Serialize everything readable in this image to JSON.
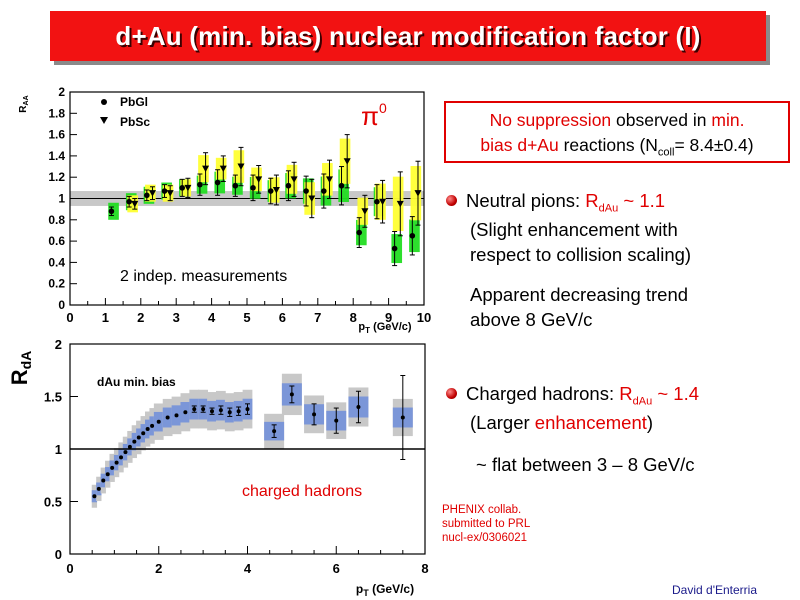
{
  "title": "d+Au (min. bias) nuclear modification factor (I)",
  "note": {
    "line1_red": "No suppression",
    "line1_black": " observed in ",
    "line1_red2": "min.",
    "line2_red": "bias d+Au",
    "line2_black": " reactions (N",
    "line2_sub": "coll",
    "line2_tail": "= 8.4±0.4)"
  },
  "bullets": {
    "b1_label": "Neutral pions: ",
    "b1_r": "R",
    "b1_sub": "dAu",
    "b1_val": " ~ 1.1",
    "b1_sub1": "(Slight enhancement with",
    "b1_sub2": " respect to collision scaling)",
    "b1_sub3": "Apparent decreasing trend",
    "b1_sub4": "above 8 GeV/c",
    "b2_label": "Charged hadrons: ",
    "b2_r": "R",
    "b2_sub": "dAu",
    "b2_val": " ~ 1.4",
    "b2_sub1a": "(Larger ",
    "b2_sub1b": "enhancement",
    "b2_sub1c": ")",
    "b2_sub2": "~ flat between 3 – 8 GeV/c"
  },
  "phenix": [
    "PHENIX collab.",
    "submitted to PRL",
    "nucl-ex/0306021"
  ],
  "author": "David d'Enterria",
  "colors": {
    "banner": "#f21212",
    "accent": "#e00000",
    "green": "#22dd22",
    "yellow": "#ffff33",
    "blue": "#7b96d8",
    "gray": "#c8c8c8"
  },
  "chart_data": [
    {
      "type": "scatter",
      "ylabel": "R_AA",
      "xlabel": "p_T (GeV/c)",
      "xlim": [
        0,
        10
      ],
      "ylim": [
        0,
        2
      ],
      "xticks": [
        "0",
        "1",
        "2",
        "3",
        "4",
        "5",
        "6",
        "7",
        "8",
        "9",
        "10"
      ],
      "yticks": [
        "0",
        "0.2",
        "0.4",
        "0.6",
        "0.8",
        "1",
        "1.2",
        "1.4",
        "1.6",
        "1.8",
        "2"
      ],
      "annotation_symbol": "π",
      "annotation_sup": "0",
      "text_annotation": "2 indep. measurements",
      "legend": [
        "PbGl",
        "PbSc"
      ],
      "legend_position": "top-left",
      "reference_band": {
        "center": 1.0,
        "half_width": 0.07
      },
      "series": [
        {
          "name": "PbGl",
          "marker": "circle",
          "x": [
            1.25,
            1.75,
            2.25,
            2.75,
            3.25,
            3.75,
            4.25,
            4.75,
            5.25,
            5.75,
            6.25,
            6.75,
            7.25,
            7.75,
            8.25,
            8.75,
            9.25,
            9.75
          ],
          "y": [
            0.88,
            0.97,
            1.03,
            1.07,
            1.1,
            1.13,
            1.15,
            1.12,
            1.1,
            1.07,
            1.12,
            1.07,
            1.07,
            1.12,
            0.68,
            0.97,
            0.53,
            0.65
          ],
          "err": [
            0.04,
            0.05,
            0.05,
            0.06,
            0.08,
            0.1,
            0.12,
            0.1,
            0.12,
            0.12,
            0.14,
            0.14,
            0.16,
            0.18,
            0.14,
            0.16,
            0.16,
            0.18
          ],
          "sys_color": "green"
        },
        {
          "name": "PbSc",
          "marker": "triangle",
          "x": [
            1.75,
            2.25,
            2.75,
            3.25,
            3.75,
            4.25,
            4.75,
            5.25,
            5.75,
            6.25,
            6.75,
            7.25,
            7.75,
            8.25,
            8.75,
            9.25,
            9.75
          ],
          "y": [
            0.95,
            1.05,
            1.05,
            1.1,
            1.28,
            1.28,
            1.3,
            1.18,
            1.08,
            1.18,
            1.0,
            1.18,
            1.35,
            0.88,
            0.97,
            0.95,
            1.05
          ],
          "err": [
            0.05,
            0.06,
            0.07,
            0.09,
            0.15,
            0.12,
            0.18,
            0.13,
            0.14,
            0.16,
            0.18,
            0.18,
            0.25,
            0.15,
            0.2,
            0.3,
            0.3
          ],
          "sys_color": "yellow"
        }
      ]
    },
    {
      "type": "scatter",
      "ylabel": "R_dA",
      "xlabel": "p_T (GeV/c)",
      "xlim": [
        0,
        8
      ],
      "ylim": [
        0,
        2
      ],
      "xticks": [
        "0",
        "2",
        "4",
        "6",
        "8"
      ],
      "yticks": [
        "0",
        "0.5",
        "1",
        "1.5",
        "2"
      ],
      "text_annotation": "dAu min. bias",
      "series_label": "charged hadrons",
      "reference_line": 1.0,
      "series": [
        {
          "name": "charged hadrons",
          "x": [
            0.55,
            0.65,
            0.75,
            0.85,
            0.95,
            1.05,
            1.15,
            1.25,
            1.35,
            1.45,
            1.55,
            1.65,
            1.75,
            1.85,
            2.0,
            2.2,
            2.4,
            2.6,
            2.8,
            3.0,
            3.2,
            3.4,
            3.6,
            3.8,
            4.0,
            4.6,
            5.0,
            5.5,
            6.0,
            6.5,
            7.5
          ],
          "y": [
            0.55,
            0.62,
            0.7,
            0.76,
            0.82,
            0.87,
            0.92,
            0.97,
            1.02,
            1.07,
            1.11,
            1.15,
            1.19,
            1.22,
            1.26,
            1.3,
            1.32,
            1.35,
            1.38,
            1.38,
            1.36,
            1.37,
            1.35,
            1.36,
            1.38,
            1.17,
            1.52,
            1.33,
            1.27,
            1.4,
            1.3
          ],
          "err": [
            0.01,
            0.01,
            0.01,
            0.01,
            0.01,
            0.01,
            0.01,
            0.01,
            0.01,
            0.01,
            0.01,
            0.01,
            0.01,
            0.02,
            0.02,
            0.02,
            0.02,
            0.02,
            0.03,
            0.03,
            0.03,
            0.04,
            0.04,
            0.04,
            0.05,
            0.06,
            0.08,
            0.1,
            0.12,
            0.15,
            0.4
          ]
        }
      ]
    }
  ]
}
